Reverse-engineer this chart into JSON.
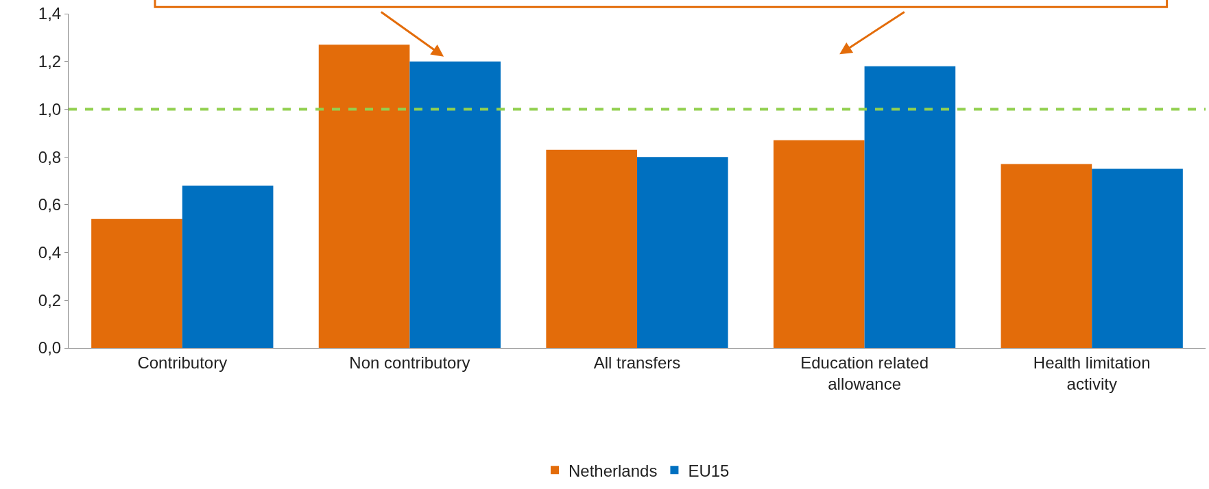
{
  "chart_data": {
    "type": "bar",
    "categories": [
      "Contributory",
      "Non contributory",
      "All transfers",
      "Education related\nallowance",
      "Health limitation\nactivity"
    ],
    "series": [
      {
        "name": "Netherlands",
        "color": "#e36c0a",
        "values": [
          0.54,
          1.27,
          0.83,
          0.87,
          0.77
        ]
      },
      {
        "name": "EU15",
        "color": "#0070c0",
        "values": [
          0.68,
          1.2,
          0.8,
          1.18,
          0.75
        ]
      }
    ],
    "ylim": [
      0,
      1.4
    ],
    "yticks": [
      {
        "value": 0,
        "label": "0,0"
      },
      {
        "value": 0.2,
        "label": "0,2"
      },
      {
        "value": 0.4,
        "label": "0,4"
      },
      {
        "value": 0.6,
        "label": "0,6"
      },
      {
        "value": 0.8,
        "label": "0,8"
      },
      {
        "value": 1.0,
        "label": "1,0"
      },
      {
        "value": 1.2,
        "label": "1,2"
      },
      {
        "value": 1.4,
        "label": "1,4"
      }
    ],
    "ref_lines": [
      {
        "axis": "y",
        "value": 1.0,
        "color": "#92d050",
        "line_style": "dashed"
      }
    ],
    "legend": "bottom"
  }
}
